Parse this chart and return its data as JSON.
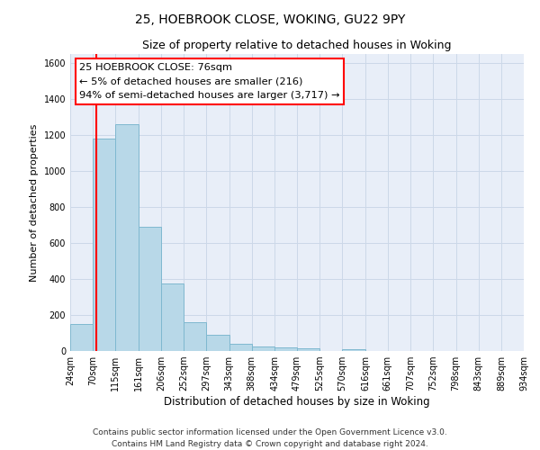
{
  "title": "25, HOEBROOK CLOSE, WOKING, GU22 9PY",
  "subtitle": "Size of property relative to detached houses in Woking",
  "xlabel": "Distribution of detached houses by size in Woking",
  "ylabel": "Number of detached properties",
  "footer_lines": [
    "Contains HM Land Registry data © Crown copyright and database right 2024.",
    "Contains public sector information licensed under the Open Government Licence v3.0."
  ],
  "bar_edges": [
    24,
    70,
    115,
    161,
    206,
    252,
    297,
    343,
    388,
    434,
    479,
    525,
    570,
    616,
    661,
    707,
    752,
    798,
    843,
    889,
    934
  ],
  "bar_values": [
    150,
    1180,
    1260,
    690,
    375,
    160,
    92,
    40,
    25,
    20,
    15,
    0,
    10,
    0,
    0,
    0,
    0,
    0,
    0,
    0
  ],
  "bar_color": "#b8d8e8",
  "bar_edge_color": "#7fb8d0",
  "red_line_x": 76,
  "ylim": [
    0,
    1650
  ],
  "yticks": [
    0,
    200,
    400,
    600,
    800,
    1000,
    1200,
    1400,
    1600
  ],
  "annotation_line1": "25 HOEBROOK CLOSE: 76sqm",
  "annotation_line2": "← 5% of detached houses are smaller (216)",
  "annotation_line3": "94% of semi-detached houses are larger (3,717) →",
  "grid_color": "#ccd8e8",
  "bg_color": "#e8eef8",
  "title_fontsize": 10,
  "subtitle_fontsize": 9,
  "ylabel_fontsize": 8,
  "xlabel_fontsize": 8.5,
  "tick_fontsize": 7,
  "footer_fontsize": 6.5
}
